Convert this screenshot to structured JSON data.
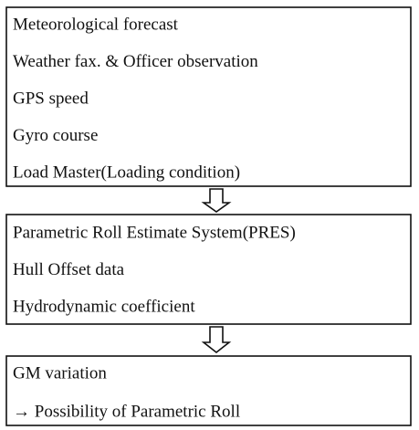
{
  "boxes": [
    {
      "lines": [
        "Meteorological forecast",
        "Weather fax. & Officer observation",
        "GPS speed",
        "Gyro course",
        "Load Master(Loading condition)"
      ]
    },
    {
      "lines": [
        "Parametric Roll Estimate System(PRES)",
        "Hull Offset data",
        "Hydrodynamic coefficient"
      ]
    },
    {
      "lines": [
        "GM variation",
        "→ Possibility of Parametric Roll"
      ]
    }
  ]
}
